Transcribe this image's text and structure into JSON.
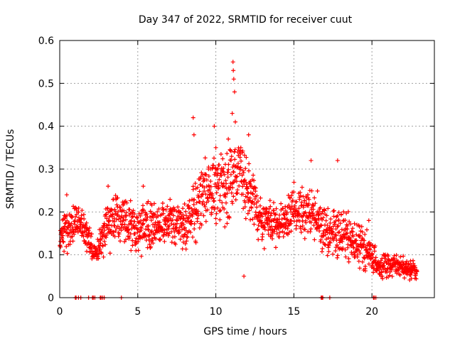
{
  "chart_data": {
    "type": "scatter",
    "title": "Day 347 of 2022, SRMTID for receiver cuut",
    "xlabel": "GPS time / hours",
    "ylabel": "SRMTID / TECUs",
    "xlim": [
      0,
      24
    ],
    "ylim": [
      0,
      0.6
    ],
    "xticks": [
      0,
      5,
      10,
      15,
      20
    ],
    "yticks": [
      0,
      0.1,
      0.2,
      0.3,
      0.4,
      0.5,
      0.6
    ],
    "xtick_labels": [
      "0",
      "5",
      "10",
      "15",
      "20"
    ],
    "ytick_labels": [
      "0",
      "0.1",
      "0.2",
      "0.3",
      "0.4",
      "0.5",
      "0.6"
    ],
    "grid": true,
    "marker": "+",
    "color": "#ff0000",
    "trend": [
      {
        "x": 0.0,
        "y": 0.14,
        "spread": 0.035
      },
      {
        "x": 0.5,
        "y": 0.15,
        "spread": 0.05
      },
      {
        "x": 1.2,
        "y": 0.19,
        "spread": 0.04
      },
      {
        "x": 2.3,
        "y": 0.1,
        "spread": 0.025
      },
      {
        "x": 3.0,
        "y": 0.17,
        "spread": 0.05
      },
      {
        "x": 4.0,
        "y": 0.19,
        "spread": 0.05
      },
      {
        "x": 5.0,
        "y": 0.16,
        "spread": 0.05
      },
      {
        "x": 6.0,
        "y": 0.17,
        "spread": 0.045
      },
      {
        "x": 7.0,
        "y": 0.18,
        "spread": 0.045
      },
      {
        "x": 8.0,
        "y": 0.16,
        "spread": 0.05
      },
      {
        "x": 8.7,
        "y": 0.22,
        "spread": 0.07
      },
      {
        "x": 9.5,
        "y": 0.25,
        "spread": 0.07
      },
      {
        "x": 10.5,
        "y": 0.25,
        "spread": 0.07
      },
      {
        "x": 11.2,
        "y": 0.3,
        "spread": 0.08
      },
      {
        "x": 12.0,
        "y": 0.27,
        "spread": 0.07
      },
      {
        "x": 13.0,
        "y": 0.17,
        "spread": 0.045
      },
      {
        "x": 14.0,
        "y": 0.17,
        "spread": 0.045
      },
      {
        "x": 15.0,
        "y": 0.2,
        "spread": 0.05
      },
      {
        "x": 16.0,
        "y": 0.2,
        "spread": 0.05
      },
      {
        "x": 17.0,
        "y": 0.16,
        "spread": 0.05
      },
      {
        "x": 18.0,
        "y": 0.15,
        "spread": 0.05
      },
      {
        "x": 19.0,
        "y": 0.13,
        "spread": 0.05
      },
      {
        "x": 20.0,
        "y": 0.1,
        "spread": 0.04
      },
      {
        "x": 20.5,
        "y": 0.07,
        "spread": 0.025
      },
      {
        "x": 21.5,
        "y": 0.08,
        "spread": 0.025
      },
      {
        "x": 22.8,
        "y": 0.06,
        "spread": 0.02
      }
    ],
    "spikes": [
      {
        "x": 8.55,
        "y": 0.42
      },
      {
        "x": 8.6,
        "y": 0.38
      },
      {
        "x": 9.9,
        "y": 0.4
      },
      {
        "x": 10.0,
        "y": 0.35
      },
      {
        "x": 10.8,
        "y": 0.37
      },
      {
        "x": 11.1,
        "y": 0.55
      },
      {
        "x": 11.12,
        "y": 0.53
      },
      {
        "x": 11.15,
        "y": 0.51
      },
      {
        "x": 11.2,
        "y": 0.48
      },
      {
        "x": 11.05,
        "y": 0.43
      },
      {
        "x": 11.25,
        "y": 0.41
      },
      {
        "x": 11.6,
        "y": 0.35
      },
      {
        "x": 12.1,
        "y": 0.38
      },
      {
        "x": 16.1,
        "y": 0.32
      },
      {
        "x": 17.8,
        "y": 0.32
      },
      {
        "x": 19.8,
        "y": 0.18
      },
      {
        "x": 3.1,
        "y": 0.26
      },
      {
        "x": 0.45,
        "y": 0.24
      },
      {
        "x": 11.8,
        "y": 0.05
      },
      {
        "x": 5.35,
        "y": 0.26
      }
    ],
    "zero_points": [
      1.0,
      1.05,
      1.2,
      1.35,
      1.85,
      2.1,
      2.15,
      2.25,
      2.6,
      2.65,
      2.75,
      2.85,
      3.95,
      16.75,
      16.8,
      16.85,
      17.3,
      20.1,
      20.15,
      20.25
    ]
  }
}
